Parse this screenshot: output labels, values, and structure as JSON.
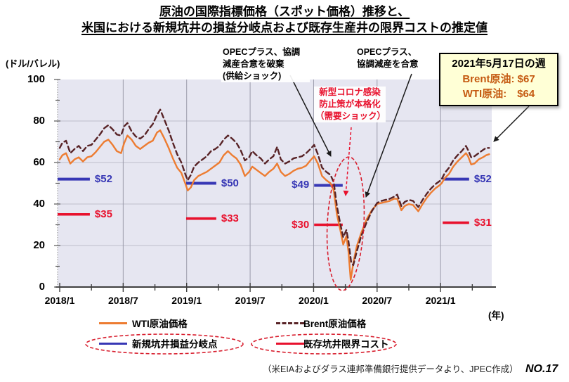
{
  "page": {
    "title_line1": "原油の国際指標価格（スポット価格）推移と、",
    "title_line2": "米国における新規坑井の損益分岐点および既存生産井の限界コストの推定値",
    "source_note": "（米EIAおよびダラス連邦準備銀行提供データより、JPEC作成）",
    "page_number": "NO.17"
  },
  "chart_data": {
    "type": "line",
    "title": "原油の国際指標価格（スポット価格）推移",
    "y_unit_label": "(ドル/バレル)",
    "x_unit_label": "(年)",
    "ylim": [
      0,
      100
    ],
    "y_ticks": [
      0,
      20,
      40,
      60,
      80,
      100
    ],
    "x_tick_labels": [
      "2018/1",
      "2018/7",
      "2019/1",
      "2019/7",
      "2020/1",
      "2020/7",
      "2021/1"
    ],
    "x_tick_months": [
      0,
      6,
      12,
      18,
      24,
      30,
      36
    ],
    "grid": true,
    "series": [
      {
        "name": "WTI原油価格",
        "color": "#ed7c31",
        "style": "solid",
        "points": [
          [
            0,
            61.5
          ],
          [
            0.25,
            63.5
          ],
          [
            0.6,
            64.5
          ],
          [
            1.0,
            59.5
          ],
          [
            1.4,
            61.5
          ],
          [
            1.8,
            62.5
          ],
          [
            2.2,
            60.5
          ],
          [
            2.6,
            62.5
          ],
          [
            3.0,
            63
          ],
          [
            3.4,
            65
          ],
          [
            3.8,
            67.5
          ],
          [
            4.2,
            70
          ],
          [
            4.6,
            71
          ],
          [
            5.0,
            68.5
          ],
          [
            5.4,
            65.5
          ],
          [
            5.8,
            64.5
          ],
          [
            6.1,
            69.5
          ],
          [
            6.4,
            73
          ],
          [
            6.8,
            71
          ],
          [
            7.2,
            68
          ],
          [
            7.6,
            66.5
          ],
          [
            8.0,
            68
          ],
          [
            8.4,
            69.5
          ],
          [
            8.8,
            70.5
          ],
          [
            9.2,
            74.5
          ],
          [
            9.5,
            75.5
          ],
          [
            9.9,
            71.5
          ],
          [
            10.3,
            67
          ],
          [
            10.7,
            62
          ],
          [
            11.1,
            57.5
          ],
          [
            11.5,
            55
          ],
          [
            11.9,
            49.5
          ],
          [
            12.1,
            46.5
          ],
          [
            12.4,
            48
          ],
          [
            12.7,
            51.5
          ],
          [
            13.1,
            53.5
          ],
          [
            13.5,
            54.5
          ],
          [
            13.9,
            55.5
          ],
          [
            14.3,
            57
          ],
          [
            14.7,
            58.5
          ],
          [
            15.1,
            60
          ],
          [
            15.5,
            63.5
          ],
          [
            15.9,
            65.5
          ],
          [
            16.3,
            63.5
          ],
          [
            16.7,
            62
          ],
          [
            17.1,
            59
          ],
          [
            17.5,
            53.5
          ],
          [
            17.9,
            55.5
          ],
          [
            18.2,
            58
          ],
          [
            18.6,
            56.5
          ],
          [
            19.0,
            55
          ],
          [
            19.4,
            53.5
          ],
          [
            19.8,
            55.5
          ],
          [
            20.2,
            57
          ],
          [
            20.55,
            59.5
          ],
          [
            20.9,
            55.5
          ],
          [
            21.3,
            53.5
          ],
          [
            21.7,
            54.5
          ],
          [
            22.1,
            56
          ],
          [
            22.5,
            57
          ],
          [
            22.9,
            57.5
          ],
          [
            23.3,
            58.5
          ],
          [
            23.7,
            61
          ],
          [
            24.05,
            63
          ],
          [
            24.4,
            59.5
          ],
          [
            24.8,
            53.5
          ],
          [
            25.2,
            51.5
          ],
          [
            25.6,
            50
          ],
          [
            25.9,
            46.5
          ],
          [
            26.2,
            35
          ],
          [
            26.5,
            28
          ],
          [
            26.8,
            20.5
          ],
          [
            27.1,
            24.5
          ],
          [
            27.3,
            17
          ],
          [
            27.5,
            3.5
          ],
          [
            27.8,
            13
          ],
          [
            28.1,
            20
          ],
          [
            28.5,
            26
          ],
          [
            29.0,
            32.5
          ],
          [
            29.5,
            37
          ],
          [
            30.0,
            40
          ],
          [
            30.4,
            40.5
          ],
          [
            30.8,
            41
          ],
          [
            31.2,
            41.5
          ],
          [
            31.6,
            42.5
          ],
          [
            31.9,
            42.5
          ],
          [
            32.3,
            37
          ],
          [
            32.6,
            39
          ],
          [
            33.0,
            40
          ],
          [
            33.4,
            39.5
          ],
          [
            33.9,
            36.5
          ],
          [
            34.3,
            40
          ],
          [
            34.7,
            43
          ],
          [
            35.1,
            45.5
          ],
          [
            35.5,
            47.5
          ],
          [
            35.9,
            49
          ],
          [
            36.1,
            50
          ],
          [
            36.4,
            52.5
          ],
          [
            36.8,
            54.5
          ],
          [
            37.2,
            58
          ],
          [
            37.6,
            60.5
          ],
          [
            38.0,
            62.5
          ],
          [
            38.4,
            64.5
          ],
          [
            38.6,
            63
          ],
          [
            38.9,
            59
          ],
          [
            39.2,
            59.5
          ],
          [
            39.6,
            61.5
          ],
          [
            40.0,
            62.5
          ],
          [
            40.3,
            63.5
          ],
          [
            40.6,
            64
          ]
        ]
      },
      {
        "name": "Brent原油価格",
        "color": "#582326",
        "style": "dashed",
        "points": [
          [
            0,
            67
          ],
          [
            0.25,
            69.5
          ],
          [
            0.6,
            70.5
          ],
          [
            1.0,
            64.5
          ],
          [
            1.4,
            66.5
          ],
          [
            1.8,
            68
          ],
          [
            2.2,
            65.5
          ],
          [
            2.6,
            68
          ],
          [
            3.0,
            68.5
          ],
          [
            3.4,
            71
          ],
          [
            3.8,
            73.5
          ],
          [
            4.2,
            76.5
          ],
          [
            4.6,
            78
          ],
          [
            5.0,
            76
          ],
          [
            5.4,
            73.5
          ],
          [
            5.8,
            73
          ],
          [
            6.1,
            77.5
          ],
          [
            6.4,
            79
          ],
          [
            6.8,
            75
          ],
          [
            7.2,
            72.5
          ],
          [
            7.6,
            71.5
          ],
          [
            8.0,
            73
          ],
          [
            8.4,
            76
          ],
          [
            8.8,
            78.5
          ],
          [
            9.2,
            83
          ],
          [
            9.5,
            85.5
          ],
          [
            9.9,
            80.5
          ],
          [
            10.3,
            75.5
          ],
          [
            10.7,
            69.5
          ],
          [
            11.1,
            64
          ],
          [
            11.5,
            60
          ],
          [
            11.9,
            54
          ],
          [
            12.1,
            51.5
          ],
          [
            12.4,
            54
          ],
          [
            12.7,
            58
          ],
          [
            13.1,
            60
          ],
          [
            13.5,
            61.5
          ],
          [
            13.9,
            63
          ],
          [
            14.3,
            65.5
          ],
          [
            14.7,
            66.5
          ],
          [
            15.1,
            68
          ],
          [
            15.5,
            71
          ],
          [
            15.9,
            73
          ],
          [
            16.3,
            71.5
          ],
          [
            16.7,
            69.5
          ],
          [
            17.1,
            66
          ],
          [
            17.5,
            61
          ],
          [
            17.9,
            62.5
          ],
          [
            18.2,
            65.5
          ],
          [
            18.6,
            63.5
          ],
          [
            19.0,
            62
          ],
          [
            19.4,
            59.5
          ],
          [
            19.8,
            61.5
          ],
          [
            20.2,
            63
          ],
          [
            20.55,
            67.5
          ],
          [
            20.9,
            61.5
          ],
          [
            21.3,
            59.5
          ],
          [
            21.7,
            60.5
          ],
          [
            22.1,
            62
          ],
          [
            22.5,
            62.5
          ],
          [
            22.9,
            63
          ],
          [
            23.3,
            64.5
          ],
          [
            23.7,
            66.5
          ],
          [
            24.05,
            68.5
          ],
          [
            24.4,
            64
          ],
          [
            24.8,
            57.5
          ],
          [
            25.2,
            55.5
          ],
          [
            25.6,
            54
          ],
          [
            25.9,
            50.5
          ],
          [
            26.2,
            39
          ],
          [
            26.5,
            31
          ],
          [
            26.8,
            24
          ],
          [
            27.1,
            27.5
          ],
          [
            27.3,
            22
          ],
          [
            27.55,
            12
          ],
          [
            27.75,
            10.5
          ],
          [
            28.1,
            17.5
          ],
          [
            28.5,
            24.5
          ],
          [
            29.0,
            31
          ],
          [
            29.5,
            36.5
          ],
          [
            30.0,
            40.5
          ],
          [
            30.4,
            41.5
          ],
          [
            30.8,
            42
          ],
          [
            31.2,
            42.5
          ],
          [
            31.6,
            43.5
          ],
          [
            31.9,
            44.5
          ],
          [
            32.3,
            39
          ],
          [
            32.6,
            41
          ],
          [
            33.0,
            42
          ],
          [
            33.4,
            41.5
          ],
          [
            33.9,
            38.5
          ],
          [
            34.3,
            42
          ],
          [
            34.7,
            45
          ],
          [
            35.1,
            47.5
          ],
          [
            35.5,
            49.5
          ],
          [
            35.9,
            51
          ],
          [
            36.1,
            52
          ],
          [
            36.4,
            55
          ],
          [
            36.8,
            57.5
          ],
          [
            37.2,
            61
          ],
          [
            37.6,
            63.5
          ],
          [
            38.0,
            65.5
          ],
          [
            38.4,
            68
          ],
          [
            38.6,
            66
          ],
          [
            38.9,
            62.5
          ],
          [
            39.2,
            63
          ],
          [
            39.6,
            64.5
          ],
          [
            40.0,
            66
          ],
          [
            40.3,
            67
          ],
          [
            40.6,
            67
          ]
        ]
      }
    ],
    "cost_lines": {
      "breakeven": {
        "name": "新規坑井損益分岐点",
        "color": "#3737b5",
        "segments": [
          {
            "label": "$52",
            "value": 52,
            "m1": -0.2,
            "m2": 2.85,
            "label_side": "right"
          },
          {
            "label": "$50",
            "value": 50,
            "m1": 11.95,
            "m2": 14.8,
            "label_side": "right"
          },
          {
            "label": "$49",
            "value": 49,
            "m1": 24.05,
            "m2": 26.75,
            "label_side": "left"
          },
          {
            "label": "$52",
            "value": 52,
            "m1": 36.2,
            "m2": 38.7,
            "label_side": "right"
          }
        ]
      },
      "marginal": {
        "name": "既存坑井限界コスト",
        "color": "#e8112d",
        "segments": [
          {
            "label": "$35",
            "value": 35,
            "m1": -0.2,
            "m2": 2.85,
            "label_side": "right"
          },
          {
            "label": "$33",
            "value": 33,
            "m1": 11.95,
            "m2": 14.8,
            "label_side": "right"
          },
          {
            "label": "$30",
            "value": 30,
            "m1": 24.05,
            "m2": 26.75,
            "label_side": "left"
          },
          {
            "label": "$31",
            "value": 31,
            "m1": 36.2,
            "m2": 38.7,
            "label_side": "right"
          }
        ]
      }
    },
    "annotations": [
      {
        "id": "opec-breakdown",
        "text": "OPECプラス、協調\n減産合意を破棄\n(供給ショック)"
      },
      {
        "id": "opec-agreement",
        "text": "OPECプラス、\n協調減産を合意"
      },
      {
        "id": "covid-shock",
        "text": "新型コロナ感染\n防止策が本格化\n（需要ショック）"
      }
    ],
    "callout_box": {
      "title": "2021年5月17日の週",
      "brent_value": "Brent原油: $67",
      "wti_value": "WTI原油:　$64"
    },
    "legend_position": "bottom"
  },
  "legend": {
    "wti": "WTI原油価格",
    "brent": "Brent原油価格",
    "breakeven": "新規坑井損益分岐点",
    "marginal": "既存坑井限界コスト"
  },
  "colors": {
    "wti": "#ed7c31",
    "brent": "#582326",
    "breakeven_blue": "#3737b5",
    "marginal_red": "#e8112d",
    "annotation_red": "#e8112d",
    "ellipse_red": "#d81e2e",
    "plot_background": "#e6e6f1",
    "callout_background": "#ffffd6",
    "callout_value_text": "#c55a11"
  }
}
